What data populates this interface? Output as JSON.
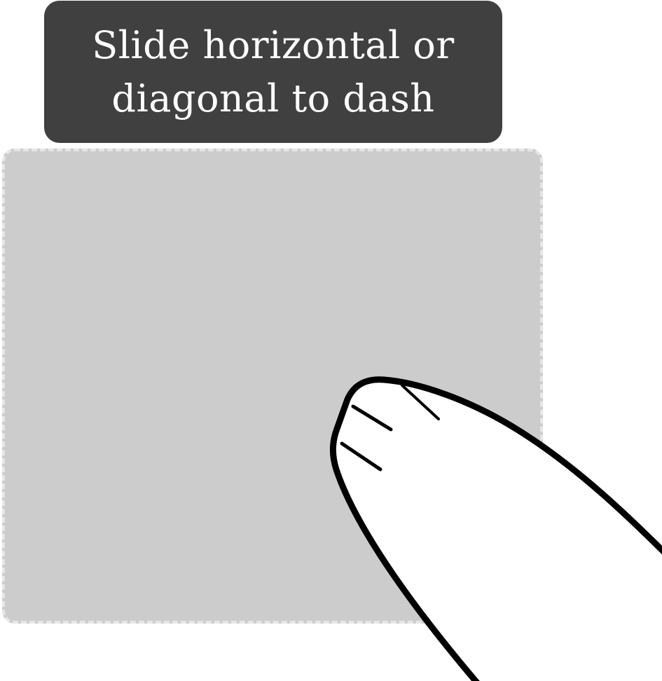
{
  "hint": {
    "text": "Slide horizontal or\ndiagonal to dash",
    "background_color": "#404040",
    "text_color": "#ffffff"
  },
  "touch_area": {
    "fill_color": "#cccccc",
    "dash_color": "#e6e6e6"
  },
  "finger": {
    "icon": "pointing-finger-icon",
    "fill_color": "#ffffff",
    "stroke_color": "#000000"
  }
}
